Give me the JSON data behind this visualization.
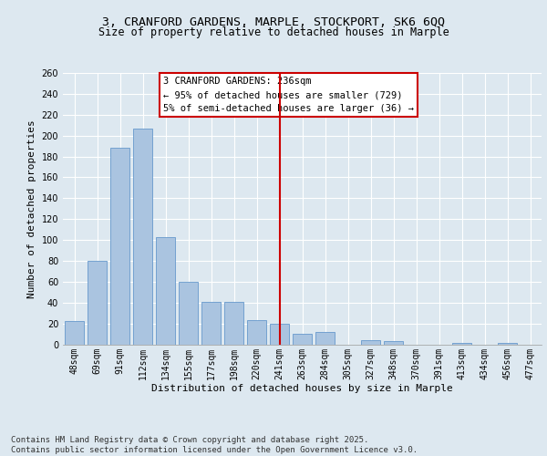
{
  "title_line1": "3, CRANFORD GARDENS, MARPLE, STOCKPORT, SK6 6QQ",
  "title_line2": "Size of property relative to detached houses in Marple",
  "xlabel": "Distribution of detached houses by size in Marple",
  "ylabel": "Number of detached properties",
  "categories": [
    "48sqm",
    "69sqm",
    "91sqm",
    "112sqm",
    "134sqm",
    "155sqm",
    "177sqm",
    "198sqm",
    "220sqm",
    "241sqm",
    "263sqm",
    "284sqm",
    "305sqm",
    "327sqm",
    "348sqm",
    "370sqm",
    "391sqm",
    "413sqm",
    "434sqm",
    "456sqm",
    "477sqm"
  ],
  "values": [
    22,
    80,
    188,
    207,
    103,
    60,
    41,
    41,
    23,
    20,
    10,
    12,
    0,
    4,
    3,
    0,
    0,
    1,
    0,
    1,
    0
  ],
  "bar_color": "#aac4e0",
  "bar_edge_color": "#6699cc",
  "vline_color": "#cc0000",
  "annotation_box_text": "3 CRANFORD GARDENS: 236sqm\n← 95% of detached houses are smaller (729)\n5% of semi-detached houses are larger (36) →",
  "box_edge_color": "#cc0000",
  "ylim": [
    0,
    260
  ],
  "bg_color": "#dde8f0",
  "grid_color": "#ffffff",
  "footer_text": "Contains HM Land Registry data © Crown copyright and database right 2025.\nContains public sector information licensed under the Open Government Licence v3.0.",
  "title_fontsize": 9.5,
  "subtitle_fontsize": 8.5,
  "axis_label_fontsize": 8,
  "tick_fontsize": 7,
  "annotation_fontsize": 7.5,
  "footer_fontsize": 6.5
}
